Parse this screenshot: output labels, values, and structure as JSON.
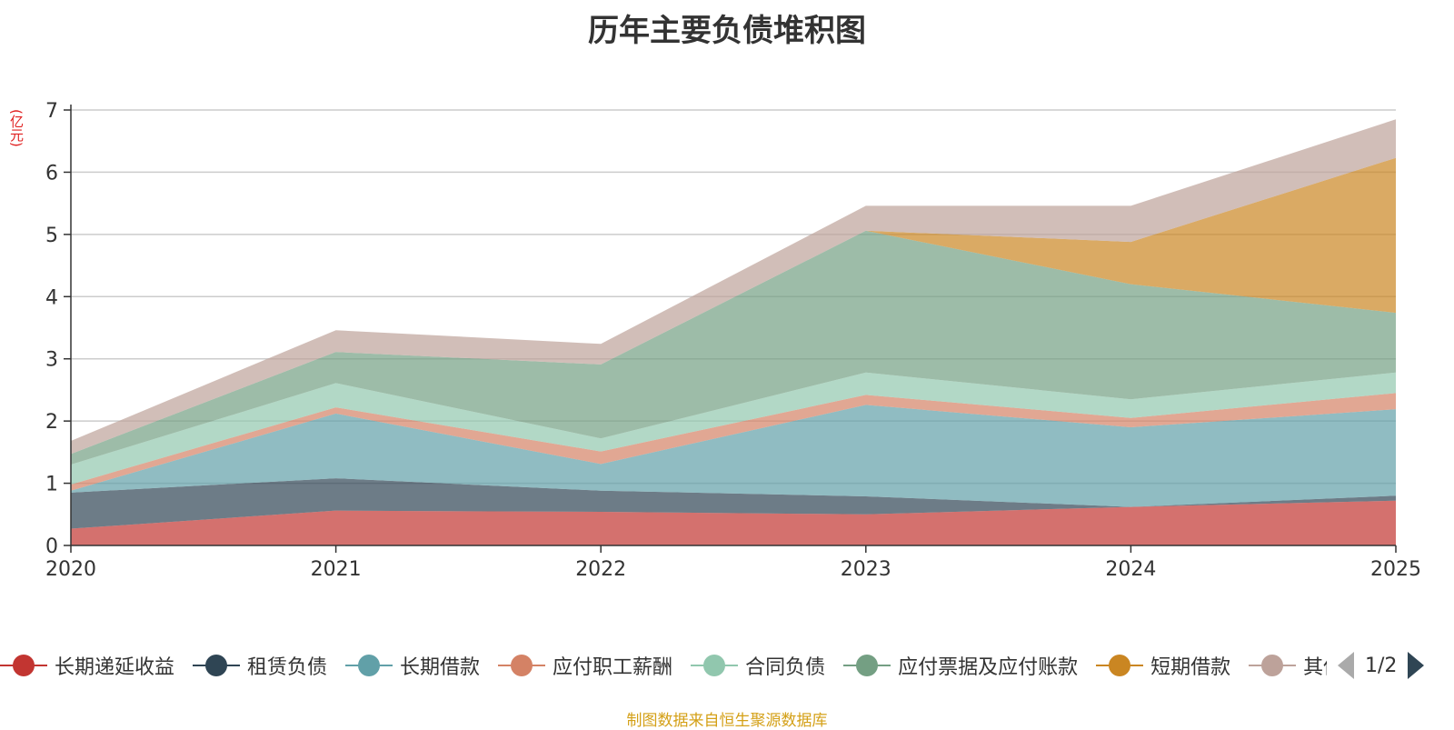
{
  "chart_data": {
    "type": "area",
    "stacked": true,
    "title": "历年主要负债堆积图",
    "ylabel": "(亿元)",
    "xlabel": "",
    "categories": [
      "2020",
      "2021",
      "2022",
      "2023",
      "2024",
      "2025"
    ],
    "ylim": [
      0,
      7
    ],
    "yticks": [
      "0",
      "1",
      "2",
      "3",
      "4",
      "5",
      "6",
      "7"
    ],
    "grid": true,
    "series": [
      {
        "name": "长期递延收益",
        "color": "#c23531",
        "values": [
          0.27,
          0.56,
          0.54,
          0.5,
          0.62,
          0.72
        ]
      },
      {
        "name": "租赁负债",
        "color": "#2f4554",
        "values": [
          0.58,
          0.52,
          0.34,
          0.29,
          0.0,
          0.08
        ]
      },
      {
        "name": "长期借款",
        "color": "#61a0a8",
        "values": [
          0.03,
          1.04,
          0.43,
          1.47,
          1.28,
          1.39
        ]
      },
      {
        "name": "应付职工薪酬",
        "color": "#d48265",
        "values": [
          0.1,
          0.1,
          0.2,
          0.16,
          0.15,
          0.26
        ]
      },
      {
        "name": "合同负债",
        "color": "#91c7ae",
        "values": [
          0.32,
          0.39,
          0.21,
          0.36,
          0.3,
          0.33
        ]
      },
      {
        "name": "应付票据及应付账款",
        "color": "#749f83",
        "values": [
          0.17,
          0.5,
          1.19,
          2.28,
          1.85,
          0.96
        ]
      },
      {
        "name": "短期借款",
        "color": "#ca8622",
        "values": [
          0.0,
          0.0,
          0.0,
          0.0,
          0.68,
          2.49
        ]
      },
      {
        "name": "其他",
        "color": "#bda29a",
        "values": [
          0.21,
          0.35,
          0.33,
          0.4,
          0.58,
          0.62
        ]
      }
    ]
  },
  "legend": {
    "page_text": "1/2"
  },
  "footer": {
    "source": "制图数据来自恒生聚源数据库"
  }
}
